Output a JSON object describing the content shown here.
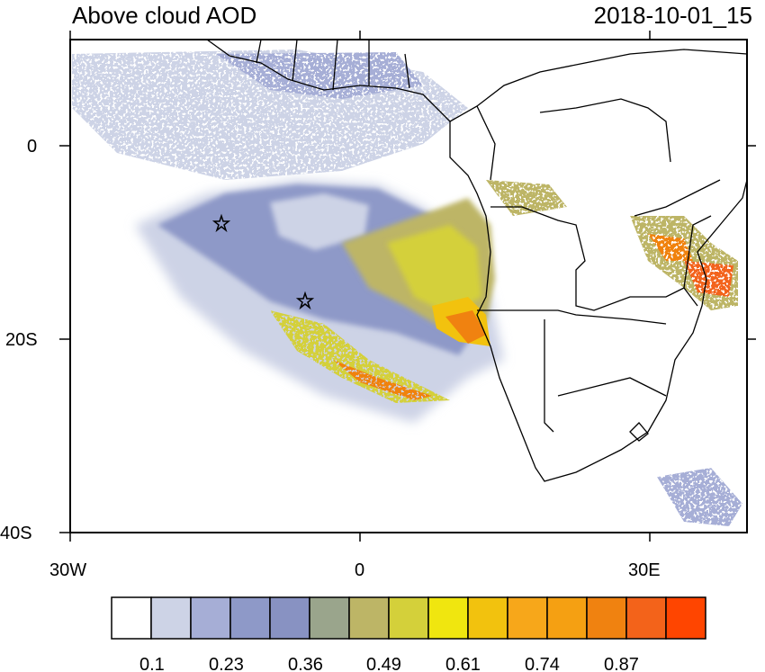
{
  "title_left": "Above cloud AOD",
  "title_right": "2018-10-01_15",
  "axes": {
    "x_ticks": [
      "30W",
      "0",
      "30E"
    ],
    "y_ticks": [
      "0",
      "20S",
      "40S"
    ]
  },
  "colorbar": {
    "colors": [
      "#ffffff",
      "#cdd3e6",
      "#a6aed6",
      "#8e99c8",
      "#8892c2",
      "#9aa58c",
      "#bdb566",
      "#d4d03a",
      "#f0e60f",
      "#f2c20e",
      "#f7a71a",
      "#f5a012",
      "#f08210",
      "#f3631a",
      "#ff4500"
    ],
    "labels": [
      "0.1",
      "0.23",
      "0.36",
      "0.49",
      "0.61",
      "0.74",
      "0.87"
    ]
  },
  "markers": [
    {
      "name": "star-marker-1"
    },
    {
      "name": "star-marker-2"
    }
  ]
}
